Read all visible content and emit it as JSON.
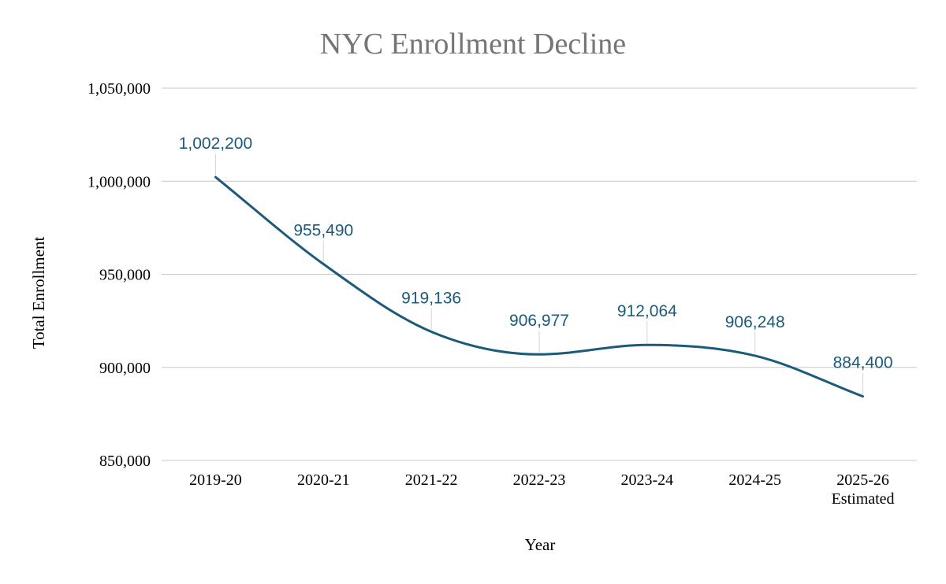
{
  "chart_data": {
    "type": "line",
    "title": "NYC Enrollment Decline",
    "xlabel": "Year",
    "ylabel": "Total Enrollment",
    "categories": [
      [
        "2019-20"
      ],
      [
        "2020-21"
      ],
      [
        "2021-22"
      ],
      [
        "2022-23"
      ],
      [
        "2023-24"
      ],
      [
        "2024-25"
      ],
      [
        "2025-26",
        "Estimated"
      ]
    ],
    "series": [
      {
        "name": "Total Enrollment",
        "values": [
          1002200,
          955490,
          919136,
          906977,
          912064,
          906248,
          884400
        ],
        "labels": [
          "1,002,200",
          "955,490",
          "919,136",
          "906,977",
          "912,064",
          "906,248",
          "884,400"
        ]
      }
    ],
    "ylim": [
      850000,
      1050000
    ],
    "yticks": [
      850000,
      900000,
      950000,
      1000000,
      1050000
    ],
    "ytick_labels": [
      "850,000",
      "900,000",
      "950,000",
      "1,000,000",
      "1,050,000"
    ],
    "grid": true,
    "legend": "none",
    "line_color": "#1b5a7a",
    "label_color": "#1b5a7a",
    "title_color": "#757575",
    "grid_color": "#c8c8c8"
  }
}
